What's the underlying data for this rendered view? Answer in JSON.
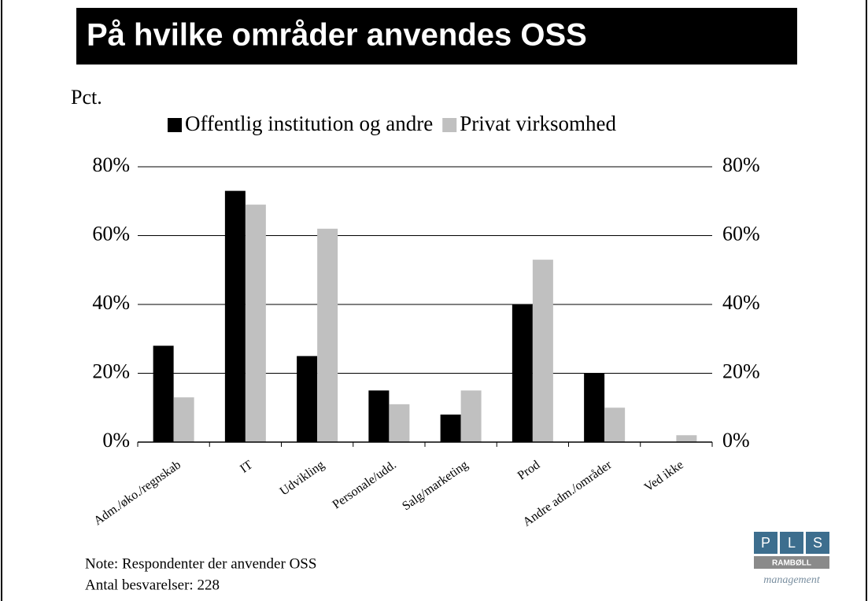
{
  "chart_data": {
    "type": "bar",
    "title": "På hvilke områder anvendes OSS",
    "y_label": "Pct.",
    "categories": [
      "Adm./øko./regnskab",
      "IT",
      "Udvikling",
      "Personale/udd.",
      "Salg/marketing",
      "Prod",
      "Andre adm./områder",
      "Ved ikke"
    ],
    "series": [
      {
        "name": "Offentlig institution og andre",
        "color": "#000000",
        "values": [
          28,
          73,
          25,
          15,
          8,
          40,
          20,
          0
        ]
      },
      {
        "name": "Privat virksomhed",
        "color": "#c0c0c0",
        "values": [
          13,
          69,
          62,
          11,
          15,
          53,
          10,
          2
        ]
      }
    ],
    "ylim": [
      0,
      80
    ],
    "yticks": [
      {
        "value": 0,
        "label": "0%"
      },
      {
        "value": 20,
        "label": "20%"
      },
      {
        "value": 40,
        "label": "40%"
      },
      {
        "value": 60,
        "label": "60%"
      },
      {
        "value": 80,
        "label": "80%"
      }
    ],
    "grid": true,
    "legend": "top",
    "notes": [
      "Note: Respondenter der anvender OSS",
      "Antal besvarelser: 228"
    ]
  },
  "logo": {
    "letters": [
      "P",
      "L",
      "S"
    ],
    "company": "RAMBØLL",
    "tagline": "management"
  }
}
